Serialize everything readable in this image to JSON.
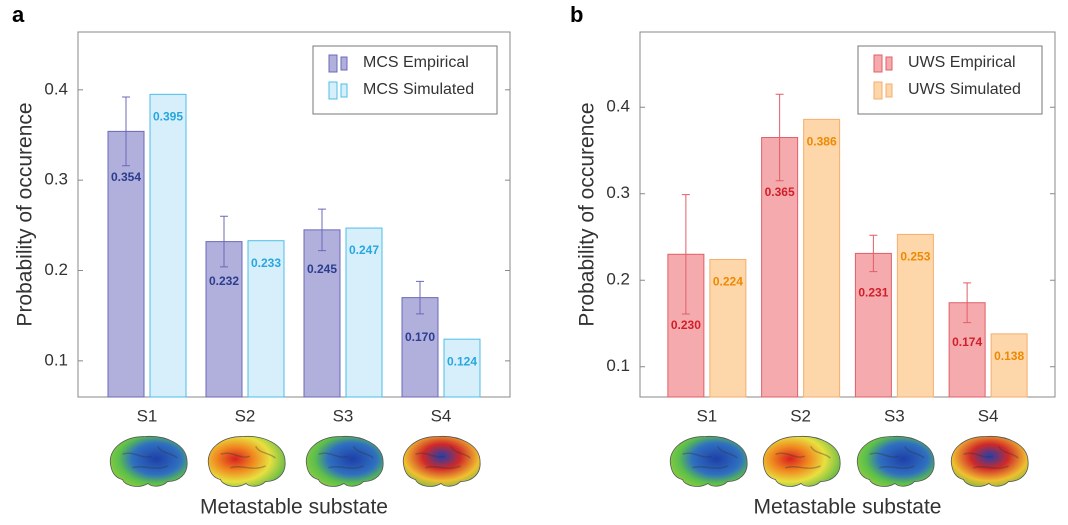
{
  "chart_data": [
    {
      "type": "bar",
      "panel": "a",
      "xlabel": "Metastable substate",
      "ylabel": "Probability of occurence",
      "categories": [
        "S1",
        "S2",
        "S3",
        "S4"
      ],
      "series": [
        {
          "name": "MCS Empirical",
          "color": "#b1afdc",
          "edgecolor": "#6b69b9",
          "label_color": "#2a3d8e",
          "values": [
            0.354,
            0.232,
            0.245,
            0.17
          ],
          "value_labels": [
            "0.354",
            "0.232",
            "0.245",
            "0.170"
          ],
          "errors": [
            0.038,
            0.028,
            0.023,
            0.018
          ]
        },
        {
          "name": "MCS Simulated",
          "color": "#d6effb",
          "edgecolor": "#4cbfe8",
          "label_color": "#27a6df",
          "values": [
            0.395,
            0.233,
            0.247,
            0.124
          ],
          "value_labels": [
            "0.395",
            "0.233",
            "0.247",
            "0.124"
          ]
        }
      ],
      "ylim": [
        0.06,
        0.464
      ],
      "yticks": [
        0.1,
        0.2,
        0.3,
        0.4
      ],
      "legend": "upper right"
    },
    {
      "type": "bar",
      "panel": "b",
      "xlabel": "Metastable substate",
      "ylabel": "Probability of occurence",
      "categories": [
        "S1",
        "S2",
        "S3",
        "S4"
      ],
      "series": [
        {
          "name": "UWS Empirical",
          "color": "#f5abae",
          "edgecolor": "#e05f67",
          "label_color": "#d01f2a",
          "values": [
            0.23,
            0.365,
            0.231,
            0.174
          ],
          "value_labels": [
            "0.230",
            "0.365",
            "0.231",
            "0.174"
          ],
          "errors": [
            0.069,
            0.05,
            0.021,
            0.023
          ]
        },
        {
          "name": "UWS Simulated",
          "color": "#fdd6aa",
          "edgecolor": "#f4ae6e",
          "label_color": "#ee8900",
          "values": [
            0.224,
            0.386,
            0.253,
            0.138
          ],
          "value_labels": [
            "0.224",
            "0.386",
            "0.253",
            "0.138"
          ]
        }
      ],
      "ylim": [
        0.065,
        0.487
      ],
      "yticks": [
        0.1,
        0.2,
        0.3,
        0.4
      ],
      "legend": "upper right"
    }
  ]
}
